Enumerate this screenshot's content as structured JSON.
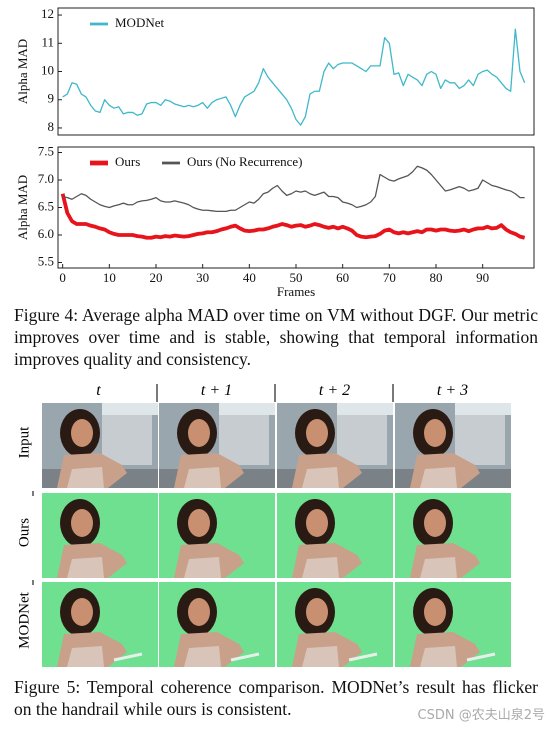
{
  "chart_data": [
    {
      "type": "line",
      "ylabel": "Alpha MAD",
      "xlim": [
        -1,
        101
      ],
      "ylim": [
        7.75,
        12.25
      ],
      "yticks": [
        8,
        9,
        10,
        11,
        12
      ],
      "legend": "upper left",
      "x": [
        0,
        1,
        2,
        3,
        4,
        5,
        6,
        7,
        8,
        9,
        10,
        11,
        12,
        13,
        14,
        15,
        16,
        17,
        18,
        19,
        20,
        21,
        22,
        23,
        24,
        25,
        26,
        27,
        28,
        29,
        30,
        31,
        32,
        33,
        34,
        35,
        36,
        37,
        38,
        39,
        40,
        41,
        42,
        43,
        44,
        45,
        46,
        47,
        48,
        49,
        50,
        51,
        52,
        53,
        54,
        55,
        56,
        57,
        58,
        59,
        60,
        61,
        62,
        63,
        64,
        65,
        66,
        67,
        68,
        69,
        70,
        71,
        72,
        73,
        74,
        75,
        76,
        77,
        78,
        79,
        80,
        81,
        82,
        83,
        84,
        85,
        86,
        87,
        88,
        89,
        90,
        91,
        92,
        93,
        94,
        95,
        96,
        97,
        98,
        99
      ],
      "series": [
        {
          "name": "MODNet",
          "color": "#3fb8c9",
          "values": [
            9.1,
            9.2,
            9.6,
            9.55,
            9.2,
            9.1,
            8.8,
            8.6,
            8.55,
            9.0,
            8.8,
            8.7,
            8.75,
            8.5,
            8.55,
            8.55,
            8.45,
            8.5,
            8.85,
            8.9,
            8.9,
            8.8,
            9.0,
            8.95,
            8.85,
            8.8,
            8.75,
            8.8,
            8.75,
            8.8,
            8.9,
            8.7,
            8.9,
            9.0,
            9.05,
            9.1,
            8.8,
            8.4,
            8.8,
            9.1,
            9.2,
            9.3,
            9.6,
            10.1,
            9.8,
            9.6,
            9.4,
            9.2,
            9.0,
            8.7,
            8.3,
            8.1,
            8.4,
            9.2,
            9.3,
            9.3,
            10.0,
            10.3,
            10.1,
            10.25,
            10.3,
            10.3,
            10.3,
            10.2,
            10.1,
            10.0,
            10.2,
            10.2,
            10.2,
            11.2,
            11.0,
            9.9,
            9.95,
            9.5,
            9.9,
            9.8,
            9.7,
            9.5,
            9.9,
            10.0,
            9.9,
            9.4,
            9.7,
            9.6,
            9.6,
            9.4,
            9.5,
            9.7,
            9.5,
            9.9,
            10.0,
            10.05,
            9.9,
            9.8,
            9.6,
            9.4,
            9.3,
            11.5,
            10.0,
            9.6
          ]
        }
      ]
    },
    {
      "type": "line",
      "xlabel": "Frames",
      "ylabel": "Alpha MAD",
      "xlim": [
        -1,
        101
      ],
      "ylim": [
        5.4,
        7.6
      ],
      "xticks": [
        0,
        10,
        20,
        30,
        40,
        50,
        60,
        70,
        80,
        90
      ],
      "yticks": [
        5.5,
        {
          "value": 6,
          "label": "6.0"
        },
        6.5,
        {
          "value": 7,
          "label": "7.0"
        },
        7.5
      ],
      "legend": "upper left",
      "x": [
        0,
        1,
        2,
        3,
        4,
        5,
        6,
        7,
        8,
        9,
        10,
        11,
        12,
        13,
        14,
        15,
        16,
        17,
        18,
        19,
        20,
        21,
        22,
        23,
        24,
        25,
        26,
        27,
        28,
        29,
        30,
        31,
        32,
        33,
        34,
        35,
        36,
        37,
        38,
        39,
        40,
        41,
        42,
        43,
        44,
        45,
        46,
        47,
        48,
        49,
        50,
        51,
        52,
        53,
        54,
        55,
        56,
        57,
        58,
        59,
        60,
        61,
        62,
        63,
        64,
        65,
        66,
        67,
        68,
        69,
        70,
        71,
        72,
        73,
        74,
        75,
        76,
        77,
        78,
        79,
        80,
        81,
        82,
        83,
        84,
        85,
        86,
        87,
        88,
        89,
        90,
        91,
        92,
        93,
        94,
        95,
        96,
        97,
        98,
        99
      ],
      "series": [
        {
          "name": "Ours",
          "color": "#e8141b",
          "values": [
            6.75,
            6.4,
            6.25,
            6.2,
            6.2,
            6.2,
            6.17,
            6.15,
            6.12,
            6.1,
            6.05,
            6.02,
            6.0,
            6.0,
            6.0,
            6.0,
            5.98,
            5.97,
            5.95,
            5.95,
            5.97,
            5.96,
            5.98,
            5.97,
            5.99,
            5.98,
            5.97,
            5.98,
            6.0,
            6.02,
            6.03,
            6.05,
            6.05,
            6.07,
            6.1,
            6.12,
            6.15,
            6.17,
            6.12,
            6.08,
            6.07,
            6.08,
            6.1,
            6.1,
            6.12,
            6.15,
            6.17,
            6.2,
            6.18,
            6.15,
            6.17,
            6.18,
            6.15,
            6.17,
            6.2,
            6.18,
            6.15,
            6.13,
            6.15,
            6.12,
            6.15,
            6.12,
            6.08,
            6.0,
            5.97,
            5.96,
            5.97,
            5.98,
            6.02,
            6.08,
            6.1,
            6.05,
            6.03,
            6.05,
            6.03,
            6.05,
            6.07,
            6.05,
            6.1,
            6.1,
            6.08,
            6.1,
            6.1,
            6.08,
            6.07,
            6.08,
            6.1,
            6.07,
            6.1,
            6.12,
            6.12,
            6.15,
            6.12,
            6.13,
            6.18,
            6.1,
            6.05,
            6.02,
            5.97,
            5.95
          ]
        },
        {
          "name": "Ours (No Recurrence)",
          "color": "#555555",
          "values": [
            6.7,
            6.68,
            6.65,
            6.7,
            6.75,
            6.72,
            6.65,
            6.6,
            6.55,
            6.52,
            6.5,
            6.53,
            6.55,
            6.58,
            6.55,
            6.55,
            6.6,
            6.62,
            6.63,
            6.65,
            6.68,
            6.62,
            6.6,
            6.6,
            6.62,
            6.6,
            6.58,
            6.55,
            6.5,
            6.47,
            6.45,
            6.45,
            6.44,
            6.43,
            6.43,
            6.43,
            6.45,
            6.45,
            6.5,
            6.55,
            6.6,
            6.58,
            6.65,
            6.75,
            6.78,
            6.85,
            6.9,
            6.8,
            6.72,
            6.75,
            6.8,
            6.78,
            6.8,
            6.75,
            6.72,
            6.75,
            6.78,
            6.7,
            6.7,
            6.68,
            6.6,
            6.58,
            6.55,
            6.5,
            6.52,
            6.55,
            6.6,
            6.7,
            7.1,
            7.05,
            7.0,
            6.98,
            7.02,
            7.05,
            7.08,
            7.15,
            7.25,
            7.22,
            7.18,
            7.1,
            7.0,
            6.9,
            6.8,
            6.82,
            6.85,
            6.88,
            6.85,
            6.8,
            6.82,
            6.85,
            7.0,
            6.95,
            6.9,
            6.88,
            6.85,
            6.82,
            6.8,
            6.75,
            6.68,
            6.68
          ]
        }
      ]
    }
  ],
  "figure4_caption": "Figure 4: Average alpha MAD over time on VM without DGF. Our metric improves over time and is stable, showing that temporal information improves quality and consistency.",
  "figure5": {
    "column_headers": [
      "t",
      "t + 1",
      "t + 2",
      "t + 3"
    ],
    "row_labels": [
      "Input",
      "Ours",
      "MODNet"
    ],
    "caption": "Figure 5: Temporal coherence comparison. MODNet’s result has flicker on the handrail while ours is consistent."
  },
  "watermark": "CSDN @农夫山泉2号"
}
